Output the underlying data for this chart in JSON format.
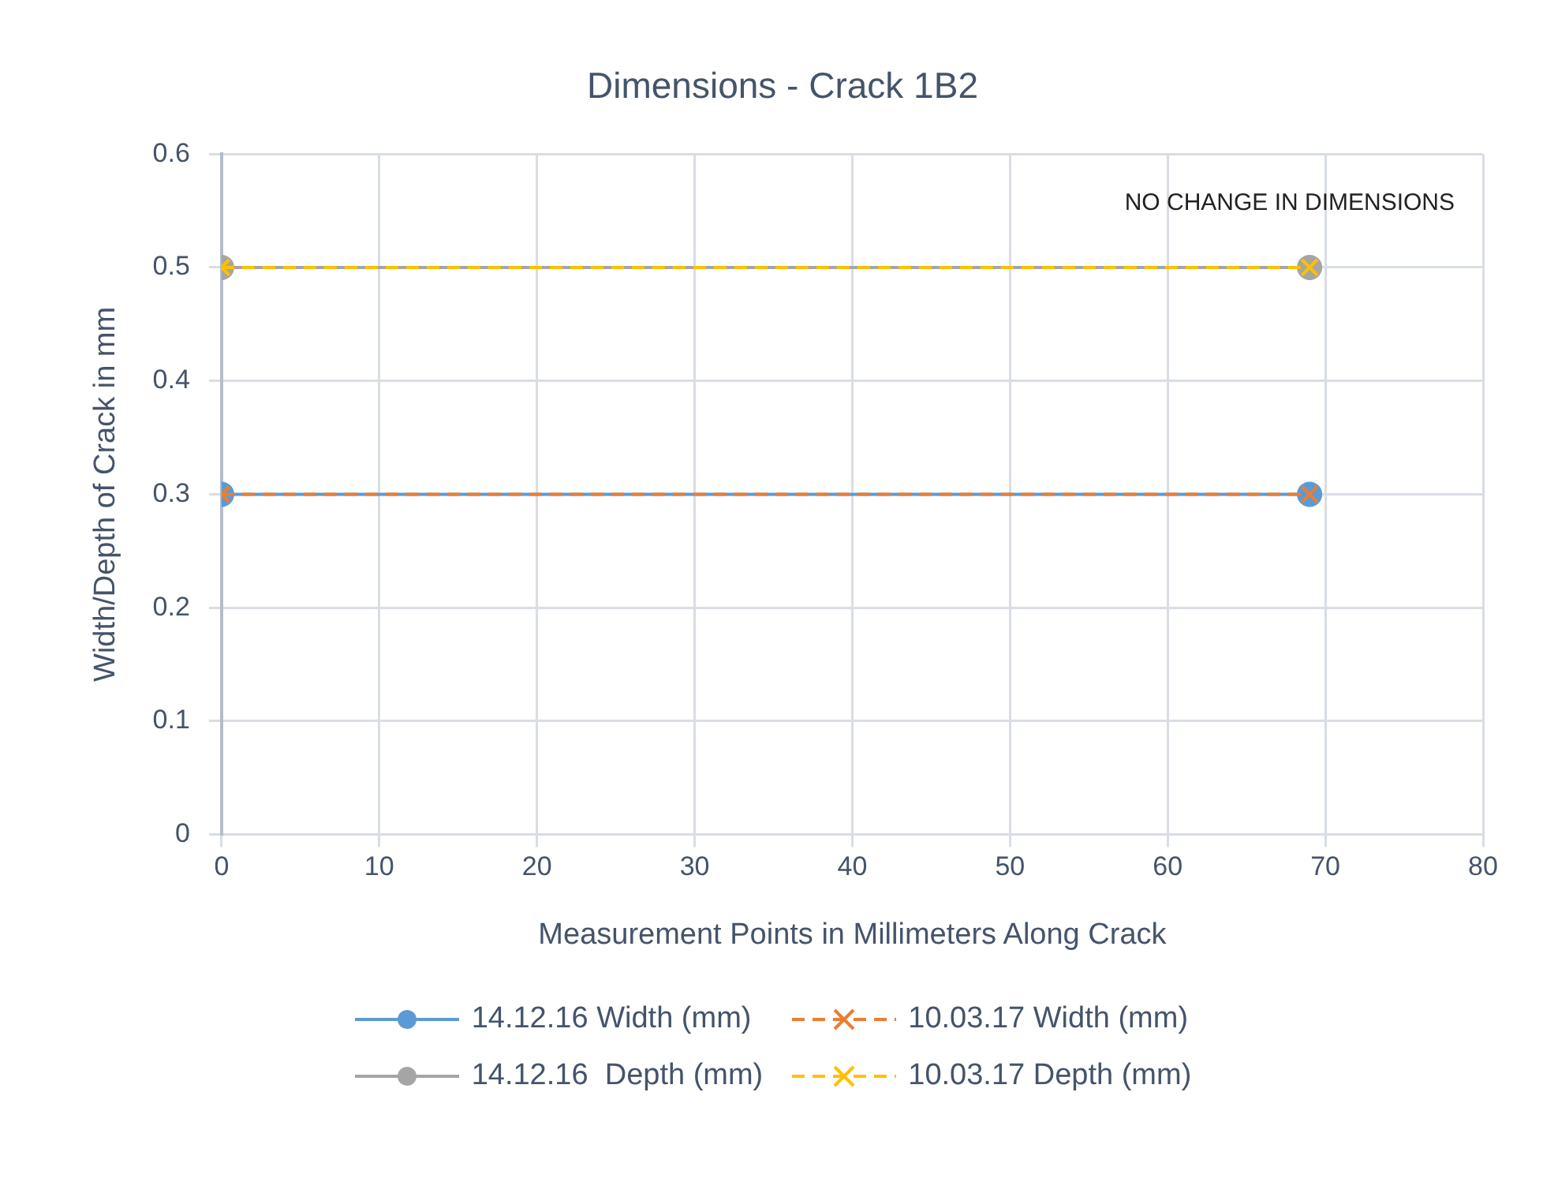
{
  "chart_data": {
    "type": "line",
    "title": "Dimensions - Crack 1B2",
    "xlabel": "Measurement Points in Millimeters Along Crack",
    "ylabel": "Width/Depth of Crack in mm",
    "annotations": [
      "NO CHANGE IN DIMENSIONS"
    ],
    "x": [
      0,
      69
    ],
    "series": [
      {
        "name": "14.12.16 Width (mm)",
        "color": "#5b9bd5",
        "values": [
          0.3,
          0.3
        ],
        "marker": "circle",
        "line_style": "solid"
      },
      {
        "name": "10.03.17 Width (mm)",
        "color": "#ed7d31",
        "values": [
          0.3,
          0.3
        ],
        "marker": "cross",
        "line_style": "dashed"
      },
      {
        "name": "14.12.16  Depth (mm)",
        "color": "#a5a5a5",
        "values": [
          0.5,
          0.5
        ],
        "marker": "circle",
        "line_style": "solid"
      },
      {
        "name": "10.03.17 Depth (mm)",
        "color": "#ffc000",
        "values": [
          0.5,
          0.5
        ],
        "marker": "cross",
        "line_style": "dashed"
      }
    ],
    "xlim": [
      0,
      80
    ],
    "xticks": [
      0,
      10,
      20,
      30,
      40,
      50,
      60,
      70,
      80
    ],
    "ylim": [
      0,
      0.6
    ],
    "yticks": [
      0,
      0.1,
      0.2,
      0.3,
      0.4,
      0.5,
      0.6
    ],
    "grid": true,
    "legend": "bottom"
  }
}
